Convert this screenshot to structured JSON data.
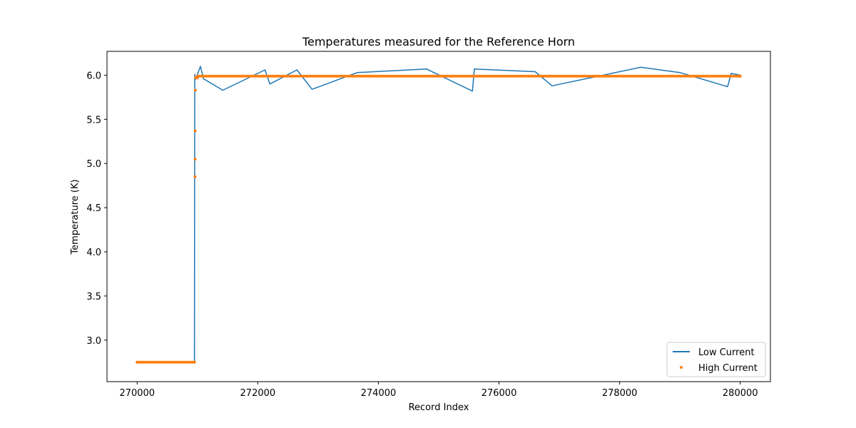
{
  "chart_data": {
    "type": "line",
    "title": "Temperatures measured for the Reference Horn",
    "xlabel": "Record Index",
    "ylabel": "Temperature (K)",
    "xlim": [
      269500,
      280500
    ],
    "ylim": [
      2.53,
      6.27
    ],
    "xticks": [
      270000,
      272000,
      274000,
      276000,
      278000,
      280000
    ],
    "xtick_labels": [
      "270000",
      "272000",
      "274000",
      "276000",
      "278000",
      "280000"
    ],
    "yticks": [
      3.0,
      3.5,
      4.0,
      4.5,
      5.0,
      5.5,
      6.0
    ],
    "ytick_labels": [
      "3.0",
      "3.5",
      "4.0",
      "4.5",
      "5.0",
      "5.5",
      "6.0"
    ],
    "grid": false,
    "legend_position": "lower-right",
    "series": [
      {
        "name": "Low Current",
        "style": "line",
        "color": "#1f77b4",
        "x": [
          270000,
          270950,
          270955,
          270965,
          271050,
          271100,
          271420,
          272120,
          272200,
          272650,
          272900,
          273650,
          274800,
          275560,
          275590,
          276600,
          276880,
          278000,
          278350,
          279000,
          279790,
          279850,
          280000
        ],
        "y": [
          2.75,
          2.75,
          6.01,
          5.95,
          6.1,
          5.96,
          5.83,
          6.06,
          5.9,
          6.06,
          5.84,
          6.03,
          6.07,
          5.82,
          6.07,
          6.04,
          5.88,
          6.04,
          6.09,
          6.03,
          5.87,
          6.02,
          6.0
        ]
      },
      {
        "name": "High Current",
        "style": "scatter",
        "color": "#ff7f0e",
        "x": [
          270000,
          270950,
          270960,
          270962,
          270964,
          270966,
          270968,
          271000,
          280000
        ],
        "y": [
          2.75,
          2.75,
          4.85,
          5.05,
          5.37,
          5.83,
          5.97,
          5.99,
          5.99
        ]
      }
    ]
  }
}
